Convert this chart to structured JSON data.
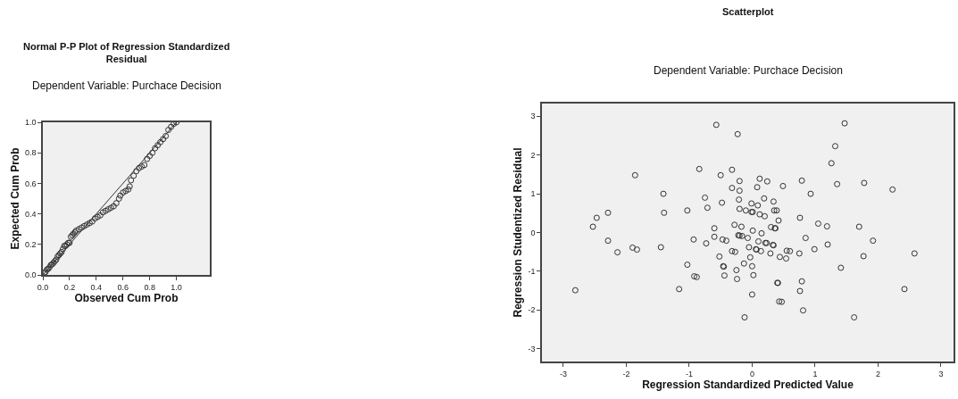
{
  "chart_data": [
    {
      "type": "scatter",
      "title": "Normal P-P Plot of Regression Standardized\nResidual",
      "subtitle": "Dependent Variable: Purchace Decision",
      "xlabel": "Observed Cum Prob",
      "ylabel": "Expected Cum Prob",
      "series": [
        {
          "type": "scatter",
          "color": "#333333",
          "marker": "circle",
          "x": [
            0.01,
            0.02,
            0.03,
            0.04,
            0.05,
            0.06,
            0.07,
            0.08,
            0.09,
            0.1,
            0.11,
            0.12,
            0.13,
            0.14,
            0.15,
            0.16,
            0.17,
            0.18,
            0.19,
            0.2,
            0.21,
            0.22,
            0.23,
            0.24,
            0.25,
            0.27,
            0.29,
            0.31,
            0.33,
            0.35,
            0.37,
            0.39,
            0.41,
            0.43,
            0.45,
            0.47,
            0.49,
            0.51,
            0.53,
            0.55,
            0.57,
            0.58,
            0.6,
            0.62,
            0.64,
            0.65,
            0.66,
            0.68,
            0.7,
            0.72,
            0.74,
            0.76,
            0.78,
            0.8,
            0.82,
            0.84,
            0.86,
            0.88,
            0.9,
            0.92,
            0.94,
            0.96,
            0.98,
            1.0
          ],
          "values": [
            0.01,
            0.02,
            0.035,
            0.04,
            0.05,
            0.065,
            0.07,
            0.08,
            0.09,
            0.1,
            0.12,
            0.13,
            0.14,
            0.15,
            0.17,
            0.19,
            0.19,
            0.2,
            0.21,
            0.21,
            0.25,
            0.26,
            0.27,
            0.28,
            0.29,
            0.3,
            0.31,
            0.32,
            0.33,
            0.34,
            0.35,
            0.37,
            0.38,
            0.39,
            0.41,
            0.42,
            0.43,
            0.44,
            0.45,
            0.47,
            0.5,
            0.52,
            0.54,
            0.55,
            0.56,
            0.58,
            0.62,
            0.65,
            0.68,
            0.7,
            0.71,
            0.72,
            0.76,
            0.78,
            0.8,
            0.83,
            0.85,
            0.87,
            0.89,
            0.91,
            0.95,
            0.97,
            0.99,
            1.0
          ]
        },
        {
          "type": "line",
          "color": "#333333",
          "marker": "none",
          "line_style": "solid",
          "x": [
            0,
            1
          ],
          "values": [
            0,
            1
          ]
        }
      ],
      "xlim": [
        0,
        1.25
      ],
      "ylim": [
        0,
        1
      ],
      "xticks": [
        {
          "value": 0,
          "label": "0.0"
        },
        {
          "value": 0.2,
          "label": "0.2"
        },
        {
          "value": 0.4,
          "label": "0.4"
        },
        {
          "value": 0.6,
          "label": "0.6"
        },
        {
          "value": 0.8,
          "label": "0.8"
        },
        {
          "value": 1,
          "label": "1.0"
        }
      ],
      "yticks": [
        {
          "value": 0,
          "label": "0.0"
        },
        {
          "value": 0.2,
          "label": "0.2"
        },
        {
          "value": 0.4,
          "label": "0.4"
        },
        {
          "value": 0.6,
          "label": "0.6"
        },
        {
          "value": 0.8,
          "label": "0.8"
        },
        {
          "value": 1,
          "label": "1.0"
        }
      ]
    },
    {
      "type": "scatter",
      "title": "Scatterplot",
      "subtitle": "Dependent Variable: Purchace Decision",
      "xlabel": "Regression Standardized Predicted Value",
      "ylabel": "Regression Studentized Residual",
      "color": "#333333",
      "marker": "circle",
      "x": [
        -2.81,
        -2.53,
        -2.47,
        -2.29,
        -2.29,
        -2.14,
        -1.86,
        -1.9,
        -1.83,
        -1.45,
        -1.41,
        -1.4,
        -1.16,
        -1.03,
        -1.03,
        -0.93,
        -0.92,
        -0.88,
        -0.84,
        -0.75,
        -0.71,
        -0.73,
        -0.6,
        -0.6,
        -0.57,
        -0.5,
        -0.48,
        -0.52,
        -0.23,
        1.47,
        1.32,
        1.26,
        -0.32,
        -0.2,
        0.12,
        0.24,
        -0.32,
        -0.2,
        0.08,
        0.49,
        0.79,
        1.35,
        1.78,
        2.23,
        0.93,
        -0.21,
        -0.01,
        0.09,
        0.19,
        0.34,
        -0.2,
        -0.1,
        -0.01,
        0.01,
        0.12,
        0.2,
        0.35,
        0.39,
        0.42,
        0.76,
        -0.28,
        -0.17,
        0.01,
        0.15,
        0.3,
        0.36,
        0.37,
        1.05,
        1.19,
        1.7,
        -0.47,
        -0.41,
        -0.22,
        -0.2,
        -0.16,
        -0.07,
        0.1,
        0.21,
        0.23,
        0.33,
        0.34,
        0.85,
        -0.05,
        0.06,
        0.07,
        0.14,
        -0.32,
        -0.27,
        0.99,
        1.2,
        1.92,
        0.29,
        0.44,
        0.55,
        0.6,
        0.54,
        0.75,
        -0.03,
        1.77,
        2.58,
        -0.13,
        0.0,
        -0.46,
        -0.45,
        -0.25,
        1.41,
        -0.44,
        -0.24,
        0.02,
        0.4,
        0.41,
        0.79,
        0.76,
        2.42,
        0.0,
        0.43,
        0.47,
        0.81,
        -0.12,
        1.62
      ],
      "values": [
        -1.49,
        0.15,
        0.38,
        0.51,
        -0.21,
        -0.51,
        1.48,
        -0.39,
        -0.44,
        -0.38,
        1.0,
        0.51,
        -1.46,
        0.57,
        -0.83,
        -0.18,
        -1.13,
        -1.15,
        1.64,
        0.9,
        0.64,
        -0.28,
        0.11,
        -0.11,
        2.78,
        1.48,
        0.77,
        -0.62,
        2.54,
        2.82,
        2.23,
        1.79,
        1.62,
        1.33,
        1.39,
        1.32,
        1.15,
        1.08,
        1.17,
        1.2,
        1.34,
        1.25,
        1.28,
        1.11,
        1.0,
        0.85,
        0.75,
        0.7,
        0.88,
        0.8,
        0.61,
        0.57,
        0.53,
        0.53,
        0.47,
        0.42,
        0.57,
        0.57,
        0.31,
        0.38,
        0.2,
        0.15,
        0.05,
        -0.02,
        0.14,
        0.11,
        0.11,
        0.23,
        0.16,
        0.15,
        -0.18,
        -0.21,
        -0.07,
        -0.08,
        -0.09,
        -0.14,
        -0.23,
        -0.27,
        -0.27,
        -0.32,
        -0.33,
        -0.14,
        -0.38,
        -0.43,
        -0.44,
        -0.48,
        -0.48,
        -0.5,
        -0.43,
        -0.31,
        -0.21,
        -0.54,
        -0.63,
        -0.47,
        -0.48,
        -0.67,
        -0.54,
        -0.64,
        -0.61,
        -0.54,
        -0.8,
        -0.87,
        -0.87,
        -0.88,
        -0.97,
        -0.91,
        -1.11,
        -1.2,
        -1.1,
        -1.3,
        -1.3,
        -1.26,
        -1.51,
        -1.46,
        -1.6,
        -1.78,
        -1.79,
        -2.01,
        -2.19,
        -2.19
      ],
      "xlim": [
        -3.34,
        3.2
      ],
      "ylim": [
        -3.33,
        3.33
      ],
      "xticks": [
        -3,
        -2,
        -1,
        0,
        1,
        2,
        3
      ],
      "yticks": [
        -3,
        -2,
        -1,
        0,
        1,
        2,
        3
      ]
    }
  ]
}
